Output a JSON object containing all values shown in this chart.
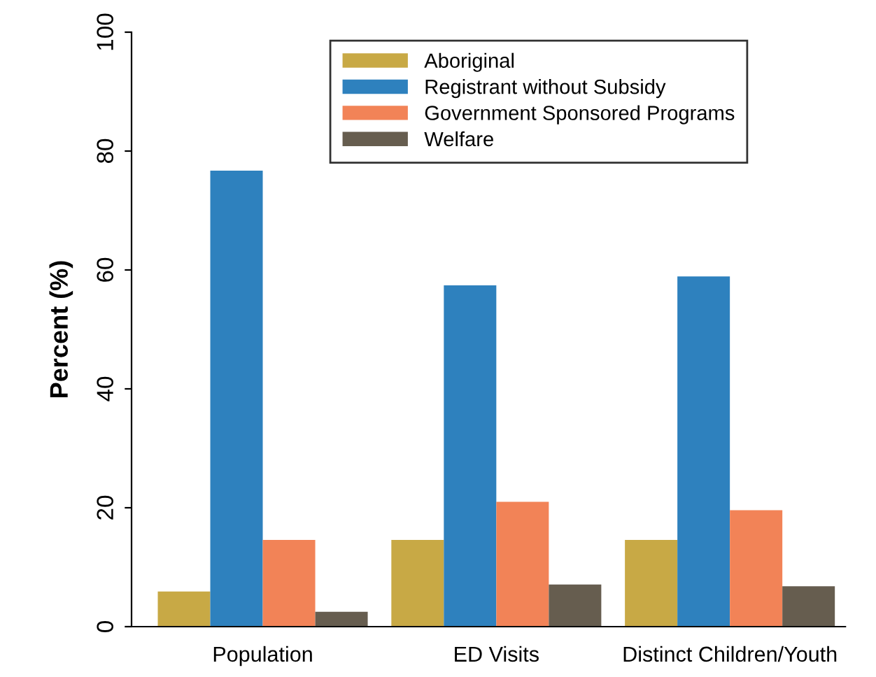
{
  "chart_data": {
    "type": "bar",
    "ylabel": "Percent (%)",
    "categories": [
      "Population",
      "ED Visits",
      "Distinct Children/Youth"
    ],
    "series": [
      {
        "name": "Aboriginal",
        "color": "#c8a945",
        "values": [
          5.9,
          14.6,
          14.6
        ]
      },
      {
        "name": "Registrant without Subsidy",
        "color": "#2e81be",
        "values": [
          76.7,
          57.4,
          58.9
        ]
      },
      {
        "name": "Government Sponsored Programs",
        "color": "#f28357",
        "values": [
          14.6,
          21.0,
          19.6
        ]
      },
      {
        "name": "Welfare",
        "color": "#665d4f",
        "values": [
          2.5,
          7.1,
          6.8
        ]
      }
    ],
    "ylim": [
      0,
      100
    ],
    "yticks": [
      0,
      20,
      40,
      60,
      80,
      100
    ],
    "grid": false,
    "legend": "top"
  }
}
